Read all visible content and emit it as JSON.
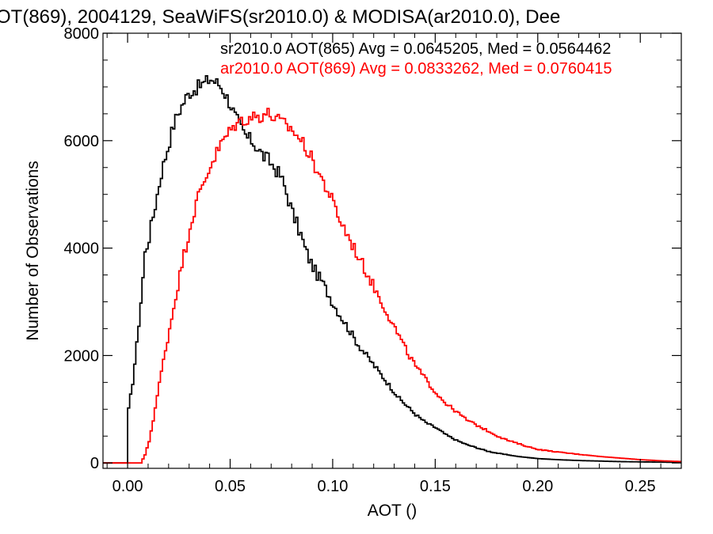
{
  "chart_data": {
    "type": "line",
    "title": "OT(869), 2004129, SeaWiFS(sr2010.0) & MODISA(ar2010.0), Dee",
    "xlabel": "AOT ()",
    "ylabel": "Number of Observations",
    "xlim": [
      -0.012,
      0.27
    ],
    "ylim": [
      -100,
      8000
    ],
    "xticks": [
      0.0,
      0.05,
      0.1,
      0.15,
      0.2,
      0.25
    ],
    "xtick_labels": [
      "0.00",
      "0.05",
      "0.10",
      "0.15",
      "0.20",
      "0.25"
    ],
    "yticks": [
      0,
      2000,
      4000,
      6000,
      8000
    ],
    "ytick_labels": [
      "0",
      "2000",
      "4000",
      "6000",
      "8000"
    ],
    "grid": false,
    "series": [
      {
        "name": "sr2010.0 AOT(865)",
        "label": "sr2010.0 AOT(865) Avg = 0.0645205, Med = 0.0564462",
        "color": "#000000",
        "x": [
          -0.012,
          -0.0005,
          0.0,
          0.002,
          0.004,
          0.006,
          0.008,
          0.01,
          0.012,
          0.014,
          0.016,
          0.018,
          0.02,
          0.022,
          0.024,
          0.026,
          0.028,
          0.03,
          0.032,
          0.034,
          0.036,
          0.038,
          0.04,
          0.042,
          0.044,
          0.046,
          0.048,
          0.05,
          0.052,
          0.054,
          0.056,
          0.058,
          0.06,
          0.062,
          0.064,
          0.066,
          0.068,
          0.07,
          0.072,
          0.074,
          0.076,
          0.078,
          0.08,
          0.082,
          0.084,
          0.086,
          0.088,
          0.09,
          0.092,
          0.094,
          0.096,
          0.098,
          0.1,
          0.104,
          0.108,
          0.112,
          0.116,
          0.12,
          0.124,
          0.128,
          0.132,
          0.136,
          0.14,
          0.145,
          0.15,
          0.155,
          0.16,
          0.165,
          0.17,
          0.175,
          0.18,
          0.185,
          0.19,
          0.195,
          0.2,
          0.21,
          0.22,
          0.23,
          0.24,
          0.25,
          0.26,
          0.27
        ],
        "y": [
          0,
          0,
          1000,
          1500,
          2200,
          3000,
          3900,
          4200,
          4600,
          5000,
          5400,
          5700,
          6000,
          6300,
          6500,
          6650,
          6800,
          6900,
          6950,
          7000,
          7050,
          7100,
          7150,
          7100,
          7050,
          6950,
          6800,
          6650,
          6450,
          6300,
          6150,
          6050,
          6000,
          5900,
          5800,
          5700,
          5650,
          5550,
          5450,
          5350,
          5150,
          4900,
          4650,
          4450,
          4250,
          4000,
          3800,
          3650,
          3500,
          3400,
          3250,
          3100,
          2950,
          2700,
          2450,
          2200,
          2000,
          1800,
          1600,
          1400,
          1200,
          1050,
          900,
          750,
          650,
          520,
          420,
          340,
          280,
          220,
          180,
          150,
          120,
          100,
          80,
          60,
          45,
          35,
          25,
          20,
          15,
          10
        ]
      },
      {
        "name": "ar2010.0 AOT(869)",
        "label": "ar2010.0 AOT(869) Avg = 0.0833262, Med = 0.0760415",
        "color": "#ff0000",
        "x": [
          -0.012,
          0.006,
          0.008,
          0.01,
          0.012,
          0.014,
          0.016,
          0.018,
          0.02,
          0.022,
          0.024,
          0.026,
          0.028,
          0.03,
          0.032,
          0.034,
          0.036,
          0.038,
          0.04,
          0.042,
          0.044,
          0.046,
          0.048,
          0.05,
          0.052,
          0.054,
          0.056,
          0.058,
          0.06,
          0.062,
          0.064,
          0.066,
          0.068,
          0.07,
          0.072,
          0.074,
          0.076,
          0.078,
          0.08,
          0.082,
          0.084,
          0.086,
          0.088,
          0.09,
          0.092,
          0.094,
          0.096,
          0.098,
          0.1,
          0.104,
          0.108,
          0.112,
          0.116,
          0.12,
          0.124,
          0.128,
          0.132,
          0.136,
          0.14,
          0.145,
          0.15,
          0.155,
          0.16,
          0.165,
          0.17,
          0.175,
          0.18,
          0.185,
          0.19,
          0.195,
          0.2,
          0.21,
          0.22,
          0.23,
          0.24,
          0.25,
          0.26,
          0.27
        ],
        "y": [
          0,
          0,
          150,
          400,
          800,
          1250,
          1700,
          2100,
          2500,
          2900,
          3300,
          3700,
          4050,
          4400,
          4700,
          4950,
          5150,
          5350,
          5550,
          5700,
          5850,
          6000,
          6100,
          6200,
          6300,
          6350,
          6400,
          6400,
          6450,
          6450,
          6450,
          6500,
          6500,
          6450,
          6400,
          6350,
          6300,
          6250,
          6200,
          6100,
          6000,
          5900,
          5750,
          5600,
          5450,
          5300,
          5150,
          5000,
          4800,
          4450,
          4150,
          3850,
          3550,
          3250,
          2950,
          2650,
          2350,
          2050,
          1800,
          1550,
          1300,
          1100,
          950,
          800,
          700,
          600,
          500,
          420,
          360,
          300,
          250,
          200,
          160,
          120,
          90,
          60,
          40,
          25
        ]
      }
    ]
  }
}
